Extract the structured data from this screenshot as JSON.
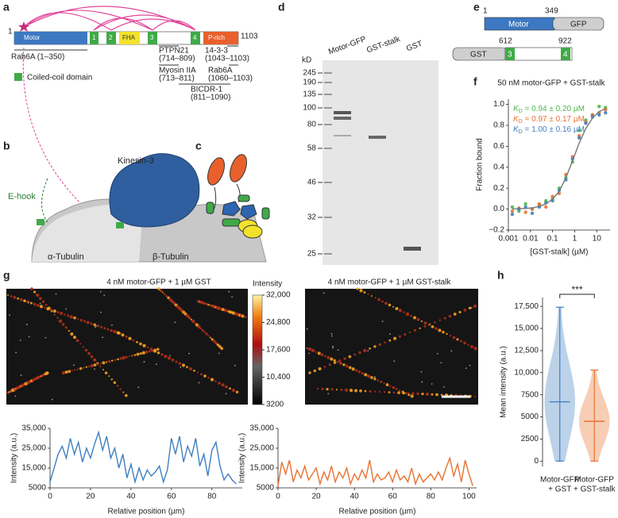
{
  "panel_labels": [
    "a",
    "b",
    "c",
    "d",
    "e",
    "f",
    "g",
    "h"
  ],
  "a": {
    "start": "1",
    "end": "1103",
    "domains": [
      "Motor",
      "1",
      "2",
      "FHA",
      "3",
      "4",
      "P-rich"
    ],
    "rab6a": "Rab6A (1–350)",
    "legend": "Coiled-coil domain",
    "binders": [
      [
        "PTPN21",
        "(714–809)"
      ],
      [
        "14-3-3",
        "(1043–1103)"
      ],
      [
        "Myosin IIA",
        "(713–811)"
      ],
      [
        "Rab6A",
        "(1060–1103)"
      ],
      [
        "BICDR-1",
        "(811–1090)"
      ]
    ]
  },
  "b": {
    "title": "Kinesin-3",
    "e_hook": "E-hook",
    "alpha": "α-Tubulin",
    "beta": "β-Tubulin"
  },
  "d": {
    "unit": "kD",
    "markers": [
      245,
      190,
      135,
      100,
      80,
      58,
      46,
      32,
      25
    ],
    "lanes": [
      "Motor-GFP",
      "GST-stalk",
      "GST"
    ]
  },
  "e": {
    "construct1": {
      "start": "1",
      "end": "349",
      "domains": [
        "Motor",
        "GFP"
      ]
    },
    "construct2": {
      "start": "612",
      "end": "922",
      "domains": [
        "GST",
        "3",
        "4"
      ]
    }
  },
  "g": {
    "titles": [
      "4 nM motor-GFP + 1 µM GST",
      "4 nM motor-GFP + 1 µM GST-stalk"
    ],
    "colorbar": {
      "title": "Intensity",
      "ticks": [
        {
          "value": 32000,
          "label": "32,000"
        },
        {
          "value": 24800,
          "label": "24,800"
        },
        {
          "value": 17600,
          "label": "17,600"
        },
        {
          "value": 10400,
          "label": "10,400"
        },
        3200
      ]
    }
  },
  "chart_data": [
    {
      "type": "scatter",
      "title": "50 nM motor-GFP + GST-stalk",
      "x_label": "[GST-stalk] (µM)",
      "y_label": "Fraction bound",
      "xlog": true,
      "xlim": [
        0.001,
        40
      ],
      "xticks": [
        0.001,
        0.01,
        0.1,
        1,
        10
      ],
      "ylim": [
        -0.2,
        1.05
      ],
      "yticks": [
        {
          "value": -0.2,
          "label": "−0.2"
        },
        {
          "value": 0,
          "label": "0.0"
        },
        {
          "value": 0.2,
          "label": "0.2"
        },
        {
          "value": 0.4,
          "label": "0.4"
        },
        {
          "value": 0.6,
          "label": "0.6"
        },
        {
          "value": 0.8,
          "label": "0.8"
        },
        {
          "value": 1,
          "label": "1.0"
        }
      ],
      "kd_symbol": "K",
      "kd_subscript": "D",
      "annotations": [
        {
          "text": " = 0.94 ± 0.20 µM",
          "color": "#4fb848"
        },
        {
          "text": " = 0.97 ± 0.17 µM",
          "color": "#e8712f"
        },
        {
          "text": " = 1.00 ± 0.16 µM",
          "color": "#3f7fc1"
        }
      ],
      "series": [
        {
          "mode": "markers",
          "color": "#4fb848",
          "x": [
            0.0015,
            0.003,
            0.006,
            0.012,
            0.025,
            0.05,
            0.1,
            0.2,
            0.4,
            0.8,
            1.6,
            3.2,
            6.4,
            12.8,
            25
          ],
          "values": [
            0.02,
            -0.02,
            0.05,
            0.0,
            0.04,
            0.08,
            0.1,
            0.2,
            0.3,
            0.45,
            0.75,
            0.85,
            0.9,
            0.98,
            0.97
          ]
        },
        {
          "mode": "markers",
          "color": "#e8712f",
          "x": [
            0.0015,
            0.003,
            0.006,
            0.012,
            0.025,
            0.05,
            0.1,
            0.2,
            0.4,
            0.8,
            1.6,
            3.2,
            6.4,
            12.8,
            25
          ],
          "values": [
            -0.02,
            0.01,
            -0.03,
            0.0,
            0.05,
            0.02,
            0.12,
            0.15,
            0.33,
            0.5,
            0.7,
            0.83,
            0.9,
            0.92,
            0.95
          ]
        },
        {
          "mode": "markers",
          "color": "#3f7fc1",
          "x": [
            0.0015,
            0.003,
            0.006,
            0.012,
            0.025,
            0.05,
            0.1,
            0.2,
            0.4,
            0.8,
            1.6,
            3.2,
            6.4,
            12.8,
            25
          ],
          "values": [
            -0.05,
            0.0,
            0.02,
            -0.04,
            0.02,
            0.06,
            0.08,
            0.18,
            0.28,
            0.48,
            0.68,
            0.82,
            0.88,
            0.9,
            0.92
          ]
        },
        {
          "mode": "line",
          "color": "#777777",
          "x": [
            0.0015,
            0.003,
            0.006,
            0.012,
            0.025,
            0.05,
            0.1,
            0.2,
            0.4,
            0.8,
            1.6,
            3.2,
            6.4,
            12.8,
            25
          ],
          "values": [
            0.002,
            0.003,
            0.006,
            0.012,
            0.026,
            0.05,
            0.095,
            0.17,
            0.3,
            0.46,
            0.63,
            0.77,
            0.87,
            0.93,
            0.96
          ]
        }
      ]
    },
    {
      "type": "line",
      "x_label": "Relative position (µm)",
      "y_label": "Intensity (a.u.)",
      "xlim": [
        0,
        95
      ],
      "xticks": [
        0,
        20,
        40,
        60,
        80
      ],
      "ylim": [
        5000,
        35000
      ],
      "yticks": [
        5000,
        {
          "value": 15000,
          "label": "15,000"
        },
        {
          "value": 25000,
          "label": "25,000"
        },
        {
          "value": 35000,
          "label": "35,000"
        }
      ],
      "series": [
        {
          "color": "#3f7fc1",
          "x": [
            0,
            2,
            4,
            6,
            8,
            10,
            12,
            14,
            16,
            18,
            20,
            22,
            24,
            26,
            28,
            30,
            32,
            34,
            36,
            38,
            40,
            42,
            44,
            46,
            48,
            50,
            52,
            54,
            56,
            58,
            60,
            62,
            64,
            66,
            68,
            70,
            72,
            74,
            76,
            78,
            80,
            82,
            84,
            86,
            88,
            90,
            92
          ],
          "values": [
            8000,
            15000,
            22000,
            26000,
            20000,
            30000,
            22000,
            28000,
            18000,
            25000,
            20000,
            27000,
            33000,
            24000,
            31000,
            20000,
            25000,
            15000,
            22000,
            10000,
            17000,
            8000,
            15000,
            9000,
            14000,
            11000,
            13000,
            16000,
            8000,
            14000,
            30000,
            22000,
            31000,
            18000,
            26000,
            21000,
            30000,
            16000,
            22000,
            11000,
            24000,
            28000,
            16000,
            9000,
            12000,
            9000,
            7000
          ]
        }
      ]
    },
    {
      "type": "line",
      "x_label": "Relative position (µm)",
      "y_label": "Intensity (a.u.)",
      "xlim": [
        0,
        104
      ],
      "xticks": [
        0,
        20,
        40,
        60,
        80,
        100
      ],
      "ylim": [
        5000,
        35000
      ],
      "yticks": [
        5000,
        {
          "value": 15000,
          "label": "15,000"
        },
        {
          "value": 25000,
          "label": "25,000"
        },
        {
          "value": 35000,
          "label": "35,000"
        }
      ],
      "series": [
        {
          "color": "#e8712f",
          "x": [
            0,
            2,
            4,
            6,
            8,
            10,
            12,
            14,
            16,
            18,
            20,
            22,
            24,
            26,
            28,
            30,
            32,
            34,
            36,
            38,
            40,
            42,
            44,
            46,
            48,
            50,
            52,
            54,
            56,
            58,
            60,
            62,
            64,
            66,
            68,
            70,
            72,
            74,
            76,
            78,
            80,
            82,
            84,
            86,
            88,
            90,
            92,
            94,
            96,
            98,
            100,
            102
          ],
          "values": [
            6000,
            18000,
            12000,
            19000,
            8000,
            14000,
            10000,
            16000,
            9000,
            12000,
            15000,
            7000,
            13000,
            9000,
            16000,
            8000,
            13000,
            10000,
            15000,
            7000,
            12000,
            9000,
            14000,
            10000,
            19000,
            8000,
            12000,
            9000,
            10000,
            13000,
            8000,
            14000,
            9000,
            11000,
            8000,
            15000,
            7000,
            12000,
            8000,
            10000,
            12000,
            9000,
            13000,
            9000,
            15000,
            20000,
            11000,
            17000,
            8000,
            19000,
            12000,
            6000
          ]
        }
      ]
    },
    {
      "type": "violin",
      "y_label": "Mean intensity (a.u.)",
      "ylim": [
        -600,
        18500
      ],
      "yticks": [
        0,
        2500,
        5000,
        7500,
        {
          "value": 10000,
          "label": "10,000"
        },
        {
          "value": 12500,
          "label": "12,500"
        },
        {
          "value": 15000,
          "label": "15,000"
        },
        {
          "value": 17500,
          "label": "17,500"
        }
      ],
      "categories": [
        [
          "Motor-GFP",
          "+ GST"
        ],
        [
          "Motor-GFP",
          "+ GST-stalk"
        ]
      ],
      "colors": [
        "#3f7fc1",
        "#e8712f"
      ],
      "means": [
        6700,
        4500
      ],
      "mins": [
        0,
        0
      ],
      "maxs": [
        17400,
        10300
      ],
      "significance": "***"
    }
  ]
}
